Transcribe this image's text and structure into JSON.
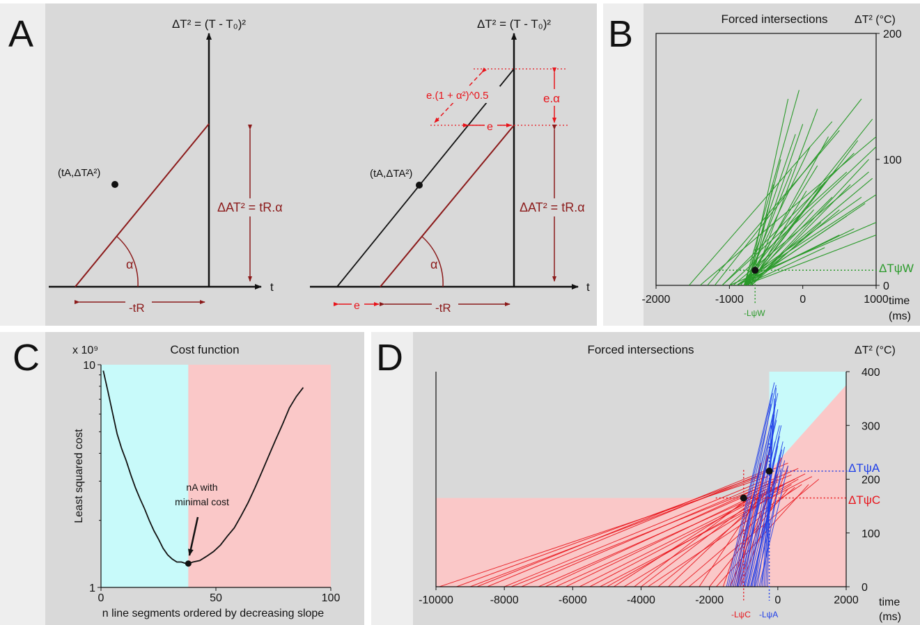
{
  "panel_a": {
    "letter": "A",
    "left": {
      "y_axis_label": "ΔT² = (T - T₀)²",
      "x_axis_label": "t",
      "point_label": "(tA,ΔTA²)",
      "angle_label": "α",
      "height_label": "ΔAT² = tR.α",
      "width_label": "-tR"
    },
    "right": {
      "y_axis_label": "ΔT² = (T - T₀)²",
      "x_axis_label": "t",
      "point_label": "(tA,ΔTA²)",
      "angle_label": "α",
      "height_label": "ΔAT² = tR.α",
      "width_label": "-tR",
      "offset_label": "e",
      "horizontal_gap_label": "e",
      "vertical_gap_label": "e.α",
      "diagonal_gap_label": "e.(1 + α²)^0.5"
    },
    "colors": {
      "black": "#111111",
      "darkred": "#8b1a1a",
      "red": "#e8141b"
    }
  },
  "panel_b": {
    "letter": "B",
    "title": "Forced intersections",
    "y_unit_label": "ΔT² (°C)",
    "x_unit_label": "time",
    "x_unit_sub": "(ms)",
    "marker_y_label": "ΔTψW",
    "marker_x_label": "-LψW",
    "color": "#2a9a2a"
  },
  "panel_c": {
    "letter": "C",
    "title": "Cost function",
    "exponent_label": "x 10⁹",
    "ylabel": "Least squared cost",
    "xlabel": "n line segments ordered by decreasing slope",
    "annotation_line1": "nA with",
    "annotation_line2": "minimal cost",
    "colors": {
      "cyan": "#c8fafa",
      "pink": "#fac8c8"
    }
  },
  "panel_d": {
    "letter": "D",
    "title": "Forced intersections",
    "y_unit_label": "ΔT² (°C)",
    "x_unit_label": "time",
    "x_unit_sub": "(ms)",
    "marker_a_y_label": "ΔTψA",
    "marker_c_y_label": "ΔTψC",
    "marker_a_x_label": "-LψA",
    "marker_c_x_label": "-LψC",
    "colors": {
      "red": "#e8141b",
      "blue": "#1e3ee8",
      "cyan": "#c8fafa",
      "pink": "#fac8c8"
    }
  },
  "chart_data": [
    {
      "panel": "B",
      "type": "line",
      "title": "Forced intersections",
      "xlabel": "time (ms)",
      "ylabel": "ΔT² (°C)",
      "xlim": [
        -2000,
        1000
      ],
      "ylim": [
        0,
        200
      ],
      "xticks": [
        -2000,
        -1000,
        0,
        1000
      ],
      "yticks": [
        0,
        100,
        200
      ],
      "intersection": {
        "x": -650,
        "y": 12
      },
      "series": [
        {
          "color": "#2a9a2a",
          "segments": [
            [
              -1550,
              0,
              400,
              130
            ],
            [
              -1300,
              0,
              500,
              123
            ],
            [
              -1200,
              0,
              800,
              148
            ],
            [
              -1400,
              0,
              1000,
              118
            ],
            [
              -1100,
              0,
              700,
              105
            ],
            [
              -1000,
              0,
              1000,
              110
            ],
            [
              -950,
              0,
              900,
              90
            ],
            [
              -900,
              0,
              1000,
              72
            ],
            [
              -1100,
              0,
              600,
              90
            ],
            [
              -900,
              0,
              800,
              70
            ],
            [
              -1000,
              0,
              1000,
              50
            ],
            [
              -900,
              0,
              700,
              45
            ],
            [
              -900,
              0,
              500,
              40
            ],
            [
              -800,
              0,
              1000,
              40
            ],
            [
              -800,
              0,
              300,
              30
            ],
            [
              -750,
              0,
              -200,
              148
            ],
            [
              -800,
              0,
              -100,
              120
            ],
            [
              -750,
              0,
              0,
              128
            ],
            [
              -800,
              0,
              100,
              110
            ],
            [
              -800,
              0,
              200,
              95
            ],
            [
              -750,
              0,
              300,
              82
            ],
            [
              -800,
              0,
              400,
              70
            ],
            [
              -750,
              0,
              500,
              60
            ],
            [
              -800,
              0,
              600,
              55
            ],
            [
              -700,
              0,
              -400,
              80
            ],
            [
              -750,
              0,
              -300,
              100
            ],
            [
              -800,
              0,
              -50,
              155
            ],
            [
              -700,
              0,
              200,
              140
            ],
            [
              -760,
              0,
              350,
              118
            ],
            [
              -800,
              0,
              450,
              92
            ],
            [
              -700,
              0,
              650,
              80
            ],
            [
              -800,
              0,
              850,
              65
            ],
            [
              -700,
              0,
              900,
              100
            ],
            [
              -750,
              0,
              750,
              115
            ],
            [
              -850,
              0,
              950,
              132
            ],
            [
              -780,
              0,
              -150,
              92
            ],
            [
              -720,
              0,
              50,
              75
            ],
            [
              -760,
              0,
              150,
              60
            ],
            [
              -700,
              0,
              250,
              50
            ],
            [
              -800,
              0,
              950,
              85
            ]
          ]
        }
      ]
    },
    {
      "panel": "C",
      "type": "line",
      "title": "Cost function",
      "xlabel": "n line segments ordered by decreasing slope",
      "ylabel": "Least squared cost",
      "xlim": [
        0,
        100
      ],
      "ylim": [
        1,
        10
      ],
      "y_scale": "log",
      "y_multiplier": "x 10⁹",
      "xticks": [
        0,
        50,
        100
      ],
      "yticks": [
        1,
        10
      ],
      "shaded_regions": [
        {
          "from": 0,
          "to": 38,
          "color": "#c8fafa"
        },
        {
          "from": 38,
          "to": 100,
          "color": "#fac8c8"
        }
      ],
      "minimum": {
        "x": 38,
        "y": 1.28
      },
      "x": [
        1,
        3,
        5,
        7,
        9,
        11,
        13,
        15,
        17,
        19,
        21,
        23,
        25,
        27,
        29,
        31,
        33,
        35,
        37,
        38,
        40,
        43,
        46,
        49,
        52,
        55,
        58,
        61,
        64,
        67,
        70,
        73,
        76,
        79,
        82,
        85,
        88
      ],
      "y": [
        9.4,
        7.6,
        6.1,
        4.9,
        4.2,
        3.7,
        3.2,
        2.8,
        2.5,
        2.25,
        2.0,
        1.8,
        1.65,
        1.5,
        1.4,
        1.34,
        1.3,
        1.3,
        1.28,
        1.28,
        1.3,
        1.32,
        1.38,
        1.45,
        1.55,
        1.7,
        1.85,
        2.1,
        2.4,
        2.8,
        3.3,
        3.9,
        4.6,
        5.4,
        6.4,
        7.2,
        7.9
      ]
    },
    {
      "panel": "D",
      "type": "line",
      "title": "Forced intersections",
      "xlabel": "time (ms)",
      "ylabel": "ΔT² (°C)",
      "xlim": [
        -10000,
        2000
      ],
      "ylim": [
        0,
        400
      ],
      "xticks": [
        -10000,
        -8000,
        -6000,
        -4000,
        -2000,
        0,
        2000
      ],
      "yticks": [
        0,
        100,
        200,
        300,
        400
      ],
      "shaded_regions": [
        {
          "name": "cyan",
          "color": "#c8fafa",
          "x_from": -250,
          "x_to": 2000,
          "y_from": 0,
          "y_to": 400
        },
        {
          "name": "pink",
          "color": "#fac8c8"
        }
      ],
      "intersections": [
        {
          "label": "C",
          "x": -1000,
          "y": 165
        },
        {
          "label": "A",
          "x": -250,
          "y": 215
        }
      ],
      "series": [
        {
          "color": "#e8141b",
          "segments": [
            [
              -9900,
              0,
              -300,
              205
            ],
            [
              -9400,
              0,
              -600,
              205
            ],
            [
              -8800,
              0,
              -200,
              220
            ],
            [
              -8500,
              0,
              300,
              230
            ],
            [
              -8000,
              0,
              -500,
              195
            ],
            [
              -7500,
              0,
              600,
              220
            ],
            [
              -7000,
              0,
              0,
              195
            ],
            [
              -6500,
              0,
              500,
              200
            ],
            [
              -6200,
              0,
              -200,
              185
            ],
            [
              -5800,
              0,
              800,
              210
            ],
            [
              -5500,
              0,
              200,
              190
            ],
            [
              -5200,
              0,
              1000,
              205
            ],
            [
              -4800,
              0,
              -400,
              180
            ],
            [
              -4500,
              0,
              400,
              190
            ],
            [
              -4200,
              0,
              -600,
              178
            ],
            [
              -3800,
              0,
              700,
              190
            ],
            [
              -3500,
              0,
              0,
              182
            ],
            [
              -3200,
              0,
              -300,
              176
            ],
            [
              -2900,
              0,
              500,
              185
            ],
            [
              -2600,
              0,
              1200,
              200
            ],
            [
              -2300,
              0,
              -500,
              172
            ],
            [
              -2000,
              0,
              300,
              182
            ],
            [
              -1800,
              0,
              900,
              190
            ],
            [
              -1600,
              0,
              -700,
              168
            ],
            [
              -1400,
              0,
              0,
              210
            ],
            [
              -1300,
              0,
              -500,
              230
            ],
            [
              -1250,
              0,
              -300,
              245
            ],
            [
              -1200,
              0,
              -200,
              260
            ],
            [
              -1150,
              0,
              100,
              240
            ],
            [
              -1100,
              0,
              300,
              225
            ],
            [
              -9000,
              0,
              -500,
              205
            ],
            [
              -6800,
              0,
              0,
              200
            ],
            [
              -4000,
              0,
              -200,
              184
            ],
            [
              -7800,
              0,
              400,
              208
            ],
            [
              -5000,
              0,
              600,
              200
            ]
          ]
        },
        {
          "color": "#1e3ee8",
          "segments": [
            [
              -1500,
              0,
              -100,
              380
            ],
            [
              -1400,
              0,
              -50,
              375
            ],
            [
              -1300,
              0,
              0,
              360
            ],
            [
              -1200,
              0,
              -200,
              340
            ],
            [
              -1100,
              0,
              0,
              330
            ],
            [
              -1000,
              0,
              -150,
              310
            ],
            [
              -950,
              0,
              100,
              300
            ],
            [
              -900,
              0,
              50,
              280
            ],
            [
              -850,
              0,
              150,
              270
            ],
            [
              -800,
              0,
              200,
              260
            ],
            [
              -750,
              0,
              100,
              250
            ],
            [
              -700,
              0,
              -100,
              240
            ],
            [
              -650,
              0,
              200,
              235
            ],
            [
              -600,
              0,
              0,
              230
            ],
            [
              -550,
              0,
              300,
              225
            ],
            [
              -500,
              0,
              100,
              220
            ],
            [
              -450,
              0,
              -50,
              370
            ],
            [
              -400,
              0,
              -100,
              350
            ],
            [
              -350,
              0,
              -150,
              320
            ],
            [
              -300,
              0,
              -200,
              300
            ],
            [
              -1450,
              0,
              -150,
              360
            ],
            [
              -1250,
              0,
              -100,
              320
            ],
            [
              -1050,
              0,
              -120,
              290
            ],
            [
              -1150,
              0,
              50,
              300
            ],
            [
              -980,
              0,
              -80,
              270
            ],
            [
              -880,
              0,
              0,
              262
            ],
            [
              -780,
              0,
              120,
              255
            ],
            [
              -680,
              0,
              50,
              245
            ],
            [
              -1350,
              0,
              -60,
              340
            ],
            [
              -1180,
              0,
              -40,
              310
            ]
          ]
        }
      ]
    }
  ]
}
